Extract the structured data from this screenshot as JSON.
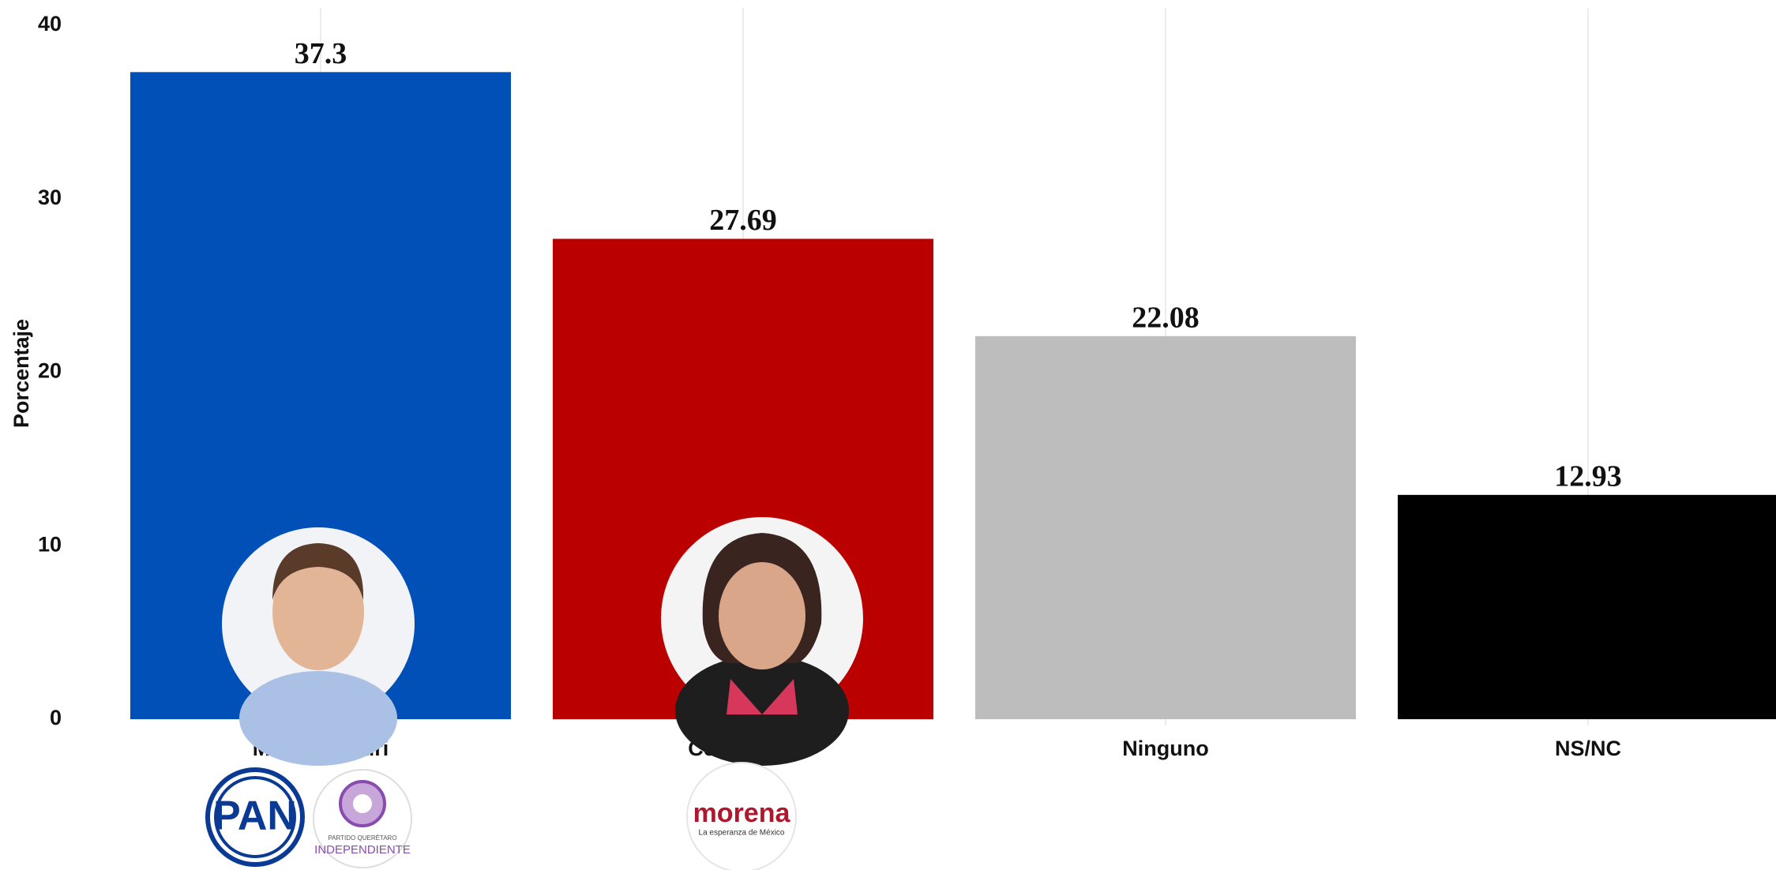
{
  "chart_data": {
    "type": "bar",
    "y_label": "Porcentaje",
    "categories": [
      "Mauricio Kuri",
      "Celia Maya",
      "Ninguno",
      "NS/NC"
    ],
    "values": [
      37.3,
      27.69,
      22.08,
      12.93
    ],
    "colors": [
      "#0050b8",
      "#bb0000",
      "#bdbdbd",
      "#000000"
    ],
    "ylim": [
      0,
      40
    ],
    "yticks": [
      0,
      10,
      20,
      30,
      40
    ],
    "grid": true,
    "logo_texts": [
      "PAN",
      "PARTIDO QUERÉTARO",
      "INDEPENDIENTE",
      "morena",
      "La esperanza de México"
    ]
  }
}
